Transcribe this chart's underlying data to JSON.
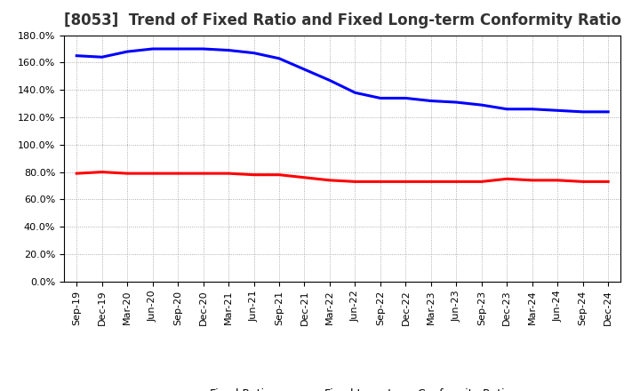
{
  "title": "[8053]  Trend of Fixed Ratio and Fixed Long-term Conformity Ratio",
  "x_labels": [
    "Sep-19",
    "Dec-19",
    "Mar-20",
    "Jun-20",
    "Sep-20",
    "Dec-20",
    "Mar-21",
    "Jun-21",
    "Sep-21",
    "Dec-21",
    "Mar-22",
    "Jun-22",
    "Sep-22",
    "Dec-22",
    "Mar-23",
    "Jun-23",
    "Sep-23",
    "Dec-23",
    "Mar-24",
    "Jun-24",
    "Sep-24",
    "Dec-24"
  ],
  "fixed_ratio": [
    165,
    164,
    168,
    170,
    170,
    170,
    169,
    167,
    163,
    155,
    147,
    138,
    134,
    134,
    132,
    131,
    129,
    126,
    126,
    125,
    124,
    124
  ],
  "fixed_ltcr": [
    79,
    80,
    79,
    79,
    79,
    79,
    79,
    78,
    78,
    76,
    74,
    73,
    73,
    73,
    73,
    73,
    73,
    75,
    74,
    74,
    73,
    73
  ],
  "fixed_ratio_color": "#0000FF",
  "fixed_ltcr_color": "#FF0000",
  "ylim": [
    0,
    180
  ],
  "yticks": [
    0,
    20,
    40,
    60,
    80,
    100,
    120,
    140,
    160,
    180
  ],
  "background_color": "#FFFFFF",
  "grid_color": "#999999",
  "legend_fixed_ratio": "Fixed Ratio",
  "legend_fixed_ltcr": "Fixed Long-term Conformity Ratio",
  "title_color": "#333333",
  "title_fontsize": 12,
  "tick_fontsize": 8,
  "linewidth": 2.2
}
